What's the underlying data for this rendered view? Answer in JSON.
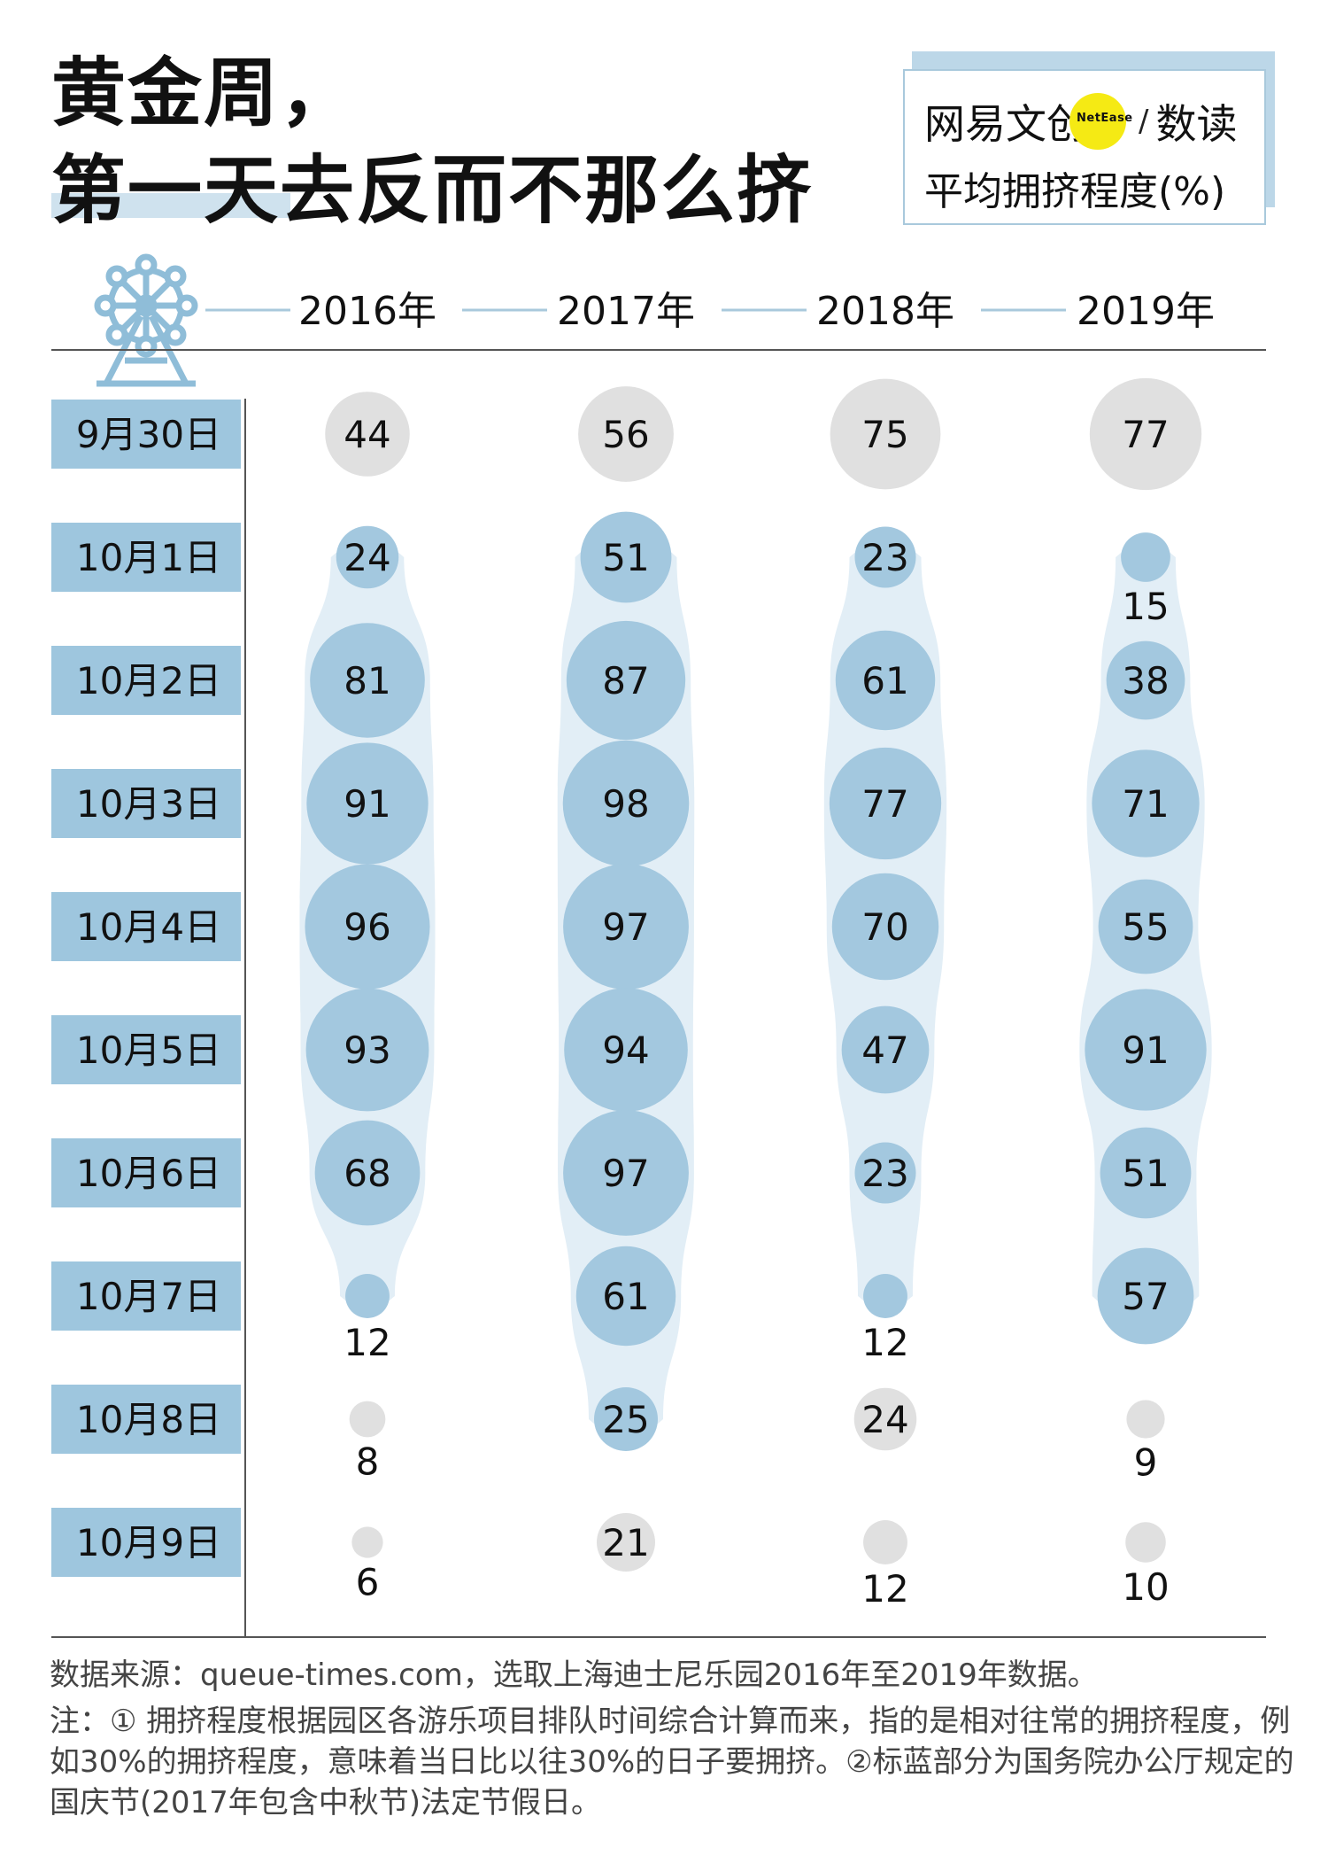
{
  "title": {
    "line1": "黄金周，",
    "line2": "第一天去反而不那么挤"
  },
  "brand": {
    "logo_text_1": "网易文创",
    "logo_dot_text": "NetEase",
    "logo_slash": "/",
    "logo_text_2": "数读",
    "subtitle": "平均拥挤程度(%)"
  },
  "icons": {
    "header": "ferris-wheel-icon"
  },
  "colors": {
    "holiday_fill": "#a3c8df",
    "holiday_band": "#e2eef6",
    "normal_fill": "#e0e0e0",
    "row_label_bg": "#9ec6de",
    "rule": "#a9c9dc"
  },
  "chart_data": {
    "type": "bubble",
    "title": "黄金周，第一天去反而不那么挤",
    "subtitle": "平均拥挤程度(%)",
    "years": [
      "2016年",
      "2017年",
      "2018年",
      "2019年"
    ],
    "dates": [
      "9月30日",
      "10月1日",
      "10月2日",
      "10月3日",
      "10月4日",
      "10月5日",
      "10月6日",
      "10月7日",
      "10月8日",
      "10月9日"
    ],
    "series": [
      {
        "year": "2016年",
        "values": [
          44,
          24,
          81,
          91,
          96,
          93,
          68,
          12,
          8,
          6
        ],
        "holiday": [
          false,
          true,
          true,
          true,
          true,
          true,
          true,
          true,
          false,
          false
        ]
      },
      {
        "year": "2017年",
        "values": [
          56,
          51,
          87,
          98,
          97,
          94,
          97,
          61,
          25,
          21
        ],
        "holiday": [
          false,
          true,
          true,
          true,
          true,
          true,
          true,
          true,
          true,
          false
        ]
      },
      {
        "year": "2018年",
        "values": [
          75,
          23,
          61,
          77,
          70,
          47,
          23,
          12,
          24,
          12
        ],
        "holiday": [
          false,
          true,
          true,
          true,
          true,
          true,
          true,
          true,
          false,
          false
        ]
      },
      {
        "year": "2019年",
        "values": [
          77,
          15,
          38,
          71,
          55,
          91,
          51,
          57,
          9,
          10
        ],
        "holiday": [
          false,
          true,
          true,
          true,
          true,
          true,
          true,
          true,
          false,
          false
        ]
      }
    ]
  },
  "footer": {
    "source": "数据来源：queue-times.com，选取上海迪士尼乐园2016年至2019年数据。",
    "note": "注：① 拥挤程度根据园区各游乐项目排队时间综合计算而来，指的是相对往常的拥挤程度，例如30%的拥挤程度，意味着当日比以往30%的日子要拥挤。②标蓝部分为国务院办公厅规定的国庆节(2017年包含中秋节)法定节假日。"
  }
}
